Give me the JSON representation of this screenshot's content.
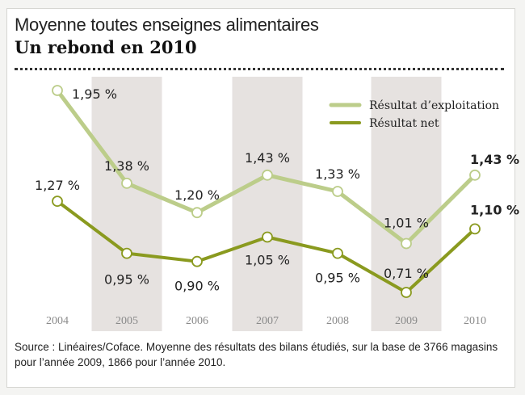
{
  "header": {
    "title": "Moyenne toutes enseignes alimentaires",
    "subtitle": "Un rebond en 2010"
  },
  "source": "Source : Linéaires/Coface. Moyenne des résultats des bilans étudiés, sur la base de 3766 magasins pour l’année 2009, 1866 pour l’année 2010.",
  "chart_data": {
    "type": "line",
    "categories": [
      "2004",
      "2005",
      "2006",
      "2007",
      "2008",
      "2009",
      "2010"
    ],
    "shaded_bands": [
      "2005",
      "2007",
      "2009"
    ],
    "series": [
      {
        "name": "Résultat d’exploitation",
        "values": [
          1.95,
          1.38,
          1.2,
          1.43,
          1.33,
          1.01,
          1.43
        ],
        "labels": [
          "1,95 %",
          "1,38 %",
          "1,20 %",
          "1,43 %",
          "1,33 %",
          "1,01 %",
          "1,43 %"
        ],
        "color": "#bccd8a"
      },
      {
        "name": "Résultat net",
        "values": [
          1.27,
          0.95,
          0.9,
          1.05,
          0.95,
          0.71,
          1.1
        ],
        "labels": [
          "1,27 %",
          "0,95 %",
          "0,90 %",
          "1,05 %",
          "0,95 %",
          "0,71 %",
          "1,10 %"
        ],
        "color": "#8a9a1f"
      }
    ],
    "legend_position": "top-right",
    "grid": false
  },
  "colors": {
    "band": "#e6e2e0",
    "text": "#222222",
    "year_label": "#8a8a8a"
  }
}
